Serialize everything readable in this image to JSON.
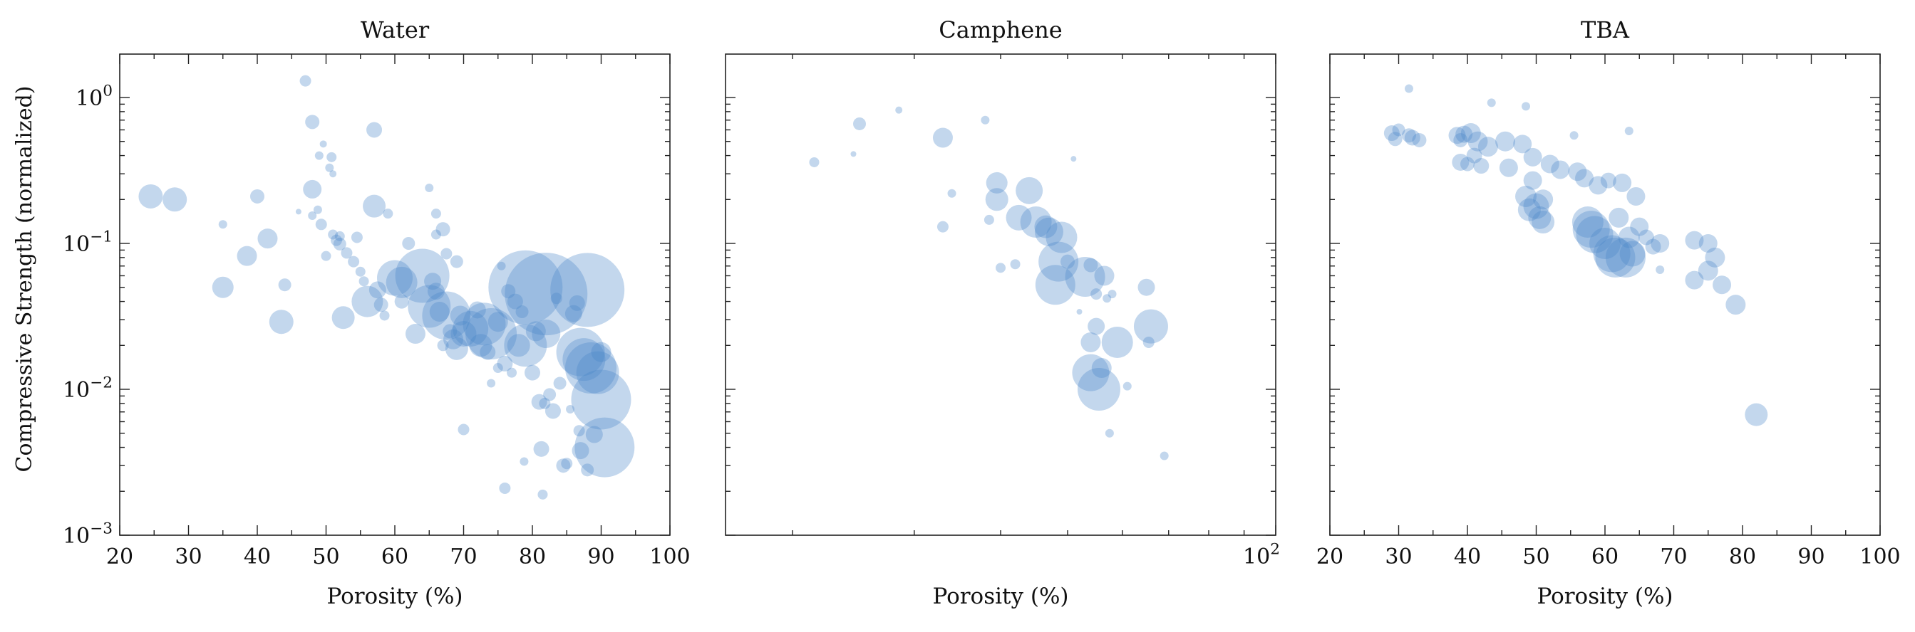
{
  "colors": {
    "bubble": "#4a86c8",
    "axis": "#222222",
    "background": "#ffffff"
  },
  "ylabel": "Compressive Strength (normalized)",
  "ytick_labels": [
    {
      "base": "10",
      "exp": "0",
      "value": 1
    },
    {
      "base": "10",
      "exp": "−1",
      "value": 0.1
    },
    {
      "base": "10",
      "exp": "−2",
      "value": 0.01
    },
    {
      "base": "10",
      "exp": "−3",
      "value": 0.001
    }
  ],
  "chart_data": [
    {
      "type": "scatter",
      "title": "Water",
      "xlabel": "Porosity (%)",
      "ylabel": "Compressive Strength (normalized)",
      "xscale": "linear",
      "yscale": "log",
      "xlim": [
        20,
        100
      ],
      "ylim": [
        0.001,
        2
      ],
      "xticks": [
        20,
        30,
        40,
        50,
        60,
        70,
        80,
        90,
        100
      ],
      "xtick_labels": [
        "20",
        "30",
        "40",
        "50",
        "60",
        "70",
        "80",
        "90",
        "100"
      ],
      "grid": false,
      "note": "bubble size s is relative marker size",
      "points": [
        {
          "x": 24.5,
          "y": 0.21,
          "s": 17
        },
        {
          "x": 28,
          "y": 0.2,
          "s": 17
        },
        {
          "x": 35,
          "y": 0.135,
          "s": 6
        },
        {
          "x": 35,
          "y": 0.05,
          "s": 15
        },
        {
          "x": 38.5,
          "y": 0.082,
          "s": 14
        },
        {
          "x": 40,
          "y": 0.21,
          "s": 10
        },
        {
          "x": 41.5,
          "y": 0.108,
          "s": 14
        },
        {
          "x": 43.5,
          "y": 0.029,
          "s": 17
        },
        {
          "x": 44,
          "y": 0.052,
          "s": 9
        },
        {
          "x": 46,
          "y": 0.165,
          "s": 4
        },
        {
          "x": 47,
          "y": 1.3,
          "s": 8
        },
        {
          "x": 48,
          "y": 0.68,
          "s": 10
        },
        {
          "x": 48,
          "y": 0.235,
          "s": 13
        },
        {
          "x": 48,
          "y": 0.155,
          "s": 6
        },
        {
          "x": 48.8,
          "y": 0.17,
          "s": 6
        },
        {
          "x": 49,
          "y": 0.4,
          "s": 6
        },
        {
          "x": 49.3,
          "y": 0.135,
          "s": 8
        },
        {
          "x": 49.6,
          "y": 0.48,
          "s": 5
        },
        {
          "x": 50,
          "y": 0.082,
          "s": 7
        },
        {
          "x": 50.5,
          "y": 0.33,
          "s": 6
        },
        {
          "x": 50.8,
          "y": 0.39,
          "s": 7
        },
        {
          "x": 51,
          "y": 0.3,
          "s": 5
        },
        {
          "x": 51,
          "y": 0.115,
          "s": 7
        },
        {
          "x": 51.5,
          "y": 0.105,
          "s": 8
        },
        {
          "x": 52,
          "y": 0.112,
          "s": 7
        },
        {
          "x": 52,
          "y": 0.099,
          "s": 9
        },
        {
          "x": 52.5,
          "y": 0.031,
          "s": 16
        },
        {
          "x": 53,
          "y": 0.086,
          "s": 8
        },
        {
          "x": 54,
          "y": 0.075,
          "s": 8
        },
        {
          "x": 54.5,
          "y": 0.11,
          "s": 8
        },
        {
          "x": 55,
          "y": 0.064,
          "s": 7
        },
        {
          "x": 55.5,
          "y": 0.055,
          "s": 7
        },
        {
          "x": 56,
          "y": 0.04,
          "s": 22
        },
        {
          "x": 57,
          "y": 0.6,
          "s": 11
        },
        {
          "x": 57,
          "y": 0.18,
          "s": 16
        },
        {
          "x": 57.5,
          "y": 0.048,
          "s": 12
        },
        {
          "x": 58,
          "y": 0.038,
          "s": 10
        },
        {
          "x": 58.5,
          "y": 0.032,
          "s": 7
        },
        {
          "x": 59,
          "y": 0.16,
          "s": 7
        },
        {
          "x": 60,
          "y": 0.058,
          "s": 25
        },
        {
          "x": 61,
          "y": 0.054,
          "s": 22
        },
        {
          "x": 61,
          "y": 0.04,
          "s": 10
        },
        {
          "x": 62,
          "y": 0.1,
          "s": 9
        },
        {
          "x": 63,
          "y": 0.024,
          "s": 14
        },
        {
          "x": 64,
          "y": 0.06,
          "s": 38
        },
        {
          "x": 65,
          "y": 0.24,
          "s": 6
        },
        {
          "x": 65,
          "y": 0.037,
          "s": 30
        },
        {
          "x": 65.5,
          "y": 0.055,
          "s": 12
        },
        {
          "x": 66,
          "y": 0.16,
          "s": 7
        },
        {
          "x": 66,
          "y": 0.115,
          "s": 7
        },
        {
          "x": 66,
          "y": 0.047,
          "s": 12
        },
        {
          "x": 66.5,
          "y": 0.034,
          "s": 14
        },
        {
          "x": 67,
          "y": 0.125,
          "s": 10
        },
        {
          "x": 67,
          "y": 0.02,
          "s": 8
        },
        {
          "x": 67.5,
          "y": 0.032,
          "s": 34
        },
        {
          "x": 67.5,
          "y": 0.085,
          "s": 8
        },
        {
          "x": 68,
          "y": 0.025,
          "s": 10
        },
        {
          "x": 68.5,
          "y": 0.022,
          "s": 14
        },
        {
          "x": 69,
          "y": 0.075,
          "s": 9
        },
        {
          "x": 69,
          "y": 0.019,
          "s": 16
        },
        {
          "x": 69.5,
          "y": 0.032,
          "s": 14
        },
        {
          "x": 70,
          "y": 0.024,
          "s": 18
        },
        {
          "x": 70,
          "y": 0.0053,
          "s": 8
        },
        {
          "x": 71,
          "y": 0.026,
          "s": 25
        },
        {
          "x": 72,
          "y": 0.035,
          "s": 12
        },
        {
          "x": 72.5,
          "y": 0.02,
          "s": 16
        },
        {
          "x": 73,
          "y": 0.028,
          "s": 30
        },
        {
          "x": 73.5,
          "y": 0.018,
          "s": 11
        },
        {
          "x": 74,
          "y": 0.011,
          "s": 6
        },
        {
          "x": 74,
          "y": 0.024,
          "s": 36
        },
        {
          "x": 75,
          "y": 0.029,
          "s": 14
        },
        {
          "x": 75,
          "y": 0.014,
          "s": 7
        },
        {
          "x": 75.5,
          "y": 0.07,
          "s": 6
        },
        {
          "x": 76,
          "y": 0.015,
          "s": 11
        },
        {
          "x": 76,
          "y": 0.0021,
          "s": 8
        },
        {
          "x": 76.5,
          "y": 0.047,
          "s": 10
        },
        {
          "x": 77,
          "y": 0.013,
          "s": 7
        },
        {
          "x": 77.5,
          "y": 0.04,
          "s": 11
        },
        {
          "x": 78,
          "y": 0.02,
          "s": 16
        },
        {
          "x": 78.5,
          "y": 0.034,
          "s": 9
        },
        {
          "x": 78.8,
          "y": 0.0032,
          "s": 6
        },
        {
          "x": 79,
          "y": 0.05,
          "s": 52
        },
        {
          "x": 79,
          "y": 0.02,
          "s": 30
        },
        {
          "x": 80,
          "y": 0.013,
          "s": 11
        },
        {
          "x": 80.5,
          "y": 0.025,
          "s": 14
        },
        {
          "x": 81,
          "y": 0.0082,
          "s": 11
        },
        {
          "x": 81.3,
          "y": 0.0039,
          "s": 11
        },
        {
          "x": 81.5,
          "y": 0.0019,
          "s": 7
        },
        {
          "x": 81.8,
          "y": 0.008,
          "s": 8
        },
        {
          "x": 82,
          "y": 0.045,
          "s": 58
        },
        {
          "x": 82,
          "y": 0.024,
          "s": 20
        },
        {
          "x": 82.5,
          "y": 0.0092,
          "s": 9
        },
        {
          "x": 83,
          "y": 0.0071,
          "s": 11
        },
        {
          "x": 83.5,
          "y": 0.042,
          "s": 8
        },
        {
          "x": 84,
          "y": 0.011,
          "s": 9
        },
        {
          "x": 84.5,
          "y": 0.003,
          "s": 10
        },
        {
          "x": 85,
          "y": 0.0031,
          "s": 8
        },
        {
          "x": 85.5,
          "y": 0.0073,
          "s": 6
        },
        {
          "x": 86,
          "y": 0.033,
          "s": 12
        },
        {
          "x": 86.5,
          "y": 0.039,
          "s": 11
        },
        {
          "x": 86.8,
          "y": 0.0052,
          "s": 8
        },
        {
          "x": 87,
          "y": 0.0038,
          "s": 12
        },
        {
          "x": 87,
          "y": 0.018,
          "s": 34
        },
        {
          "x": 87.5,
          "y": 0.016,
          "s": 30
        },
        {
          "x": 88,
          "y": 0.048,
          "s": 52
        },
        {
          "x": 88,
          "y": 0.0028,
          "s": 9
        },
        {
          "x": 88.5,
          "y": 0.014,
          "s": 36
        },
        {
          "x": 89,
          "y": 0.0049,
          "s": 12
        },
        {
          "x": 89.5,
          "y": 0.013,
          "s": 30
        },
        {
          "x": 90,
          "y": 0.018,
          "s": 14
        },
        {
          "x": 90,
          "y": 0.0085,
          "s": 42
        },
        {
          "x": 90.5,
          "y": 0.004,
          "s": 42
        }
      ]
    },
    {
      "type": "scatter",
      "title": "Camphene",
      "xlabel": "Porosity (%)",
      "ylabel": "",
      "xscale": "log",
      "yscale": "log",
      "xlim": [
        16,
        100
      ],
      "ylim": [
        0.001,
        2
      ],
      "xtick_labels": [
        {
          "base": "10",
          "exp": "2",
          "value": 100
        }
      ],
      "grid": false,
      "note": "bubble size s is relative marker size",
      "points": [
        {
          "x": 21.5,
          "y": 0.36,
          "s": 7
        },
        {
          "x": 24.5,
          "y": 0.41,
          "s": 4
        },
        {
          "x": 25,
          "y": 0.66,
          "s": 9
        },
        {
          "x": 28.5,
          "y": 0.82,
          "s": 5
        },
        {
          "x": 33,
          "y": 0.53,
          "s": 14
        },
        {
          "x": 33,
          "y": 0.13,
          "s": 8
        },
        {
          "x": 34,
          "y": 0.22,
          "s": 6
        },
        {
          "x": 38,
          "y": 0.7,
          "s": 6
        },
        {
          "x": 38.5,
          "y": 0.145,
          "s": 7
        },
        {
          "x": 39.5,
          "y": 0.26,
          "s": 15
        },
        {
          "x": 39.5,
          "y": 0.2,
          "s": 16
        },
        {
          "x": 40,
          "y": 0.068,
          "s": 7
        },
        {
          "x": 42,
          "y": 0.072,
          "s": 7
        },
        {
          "x": 42.5,
          "y": 0.15,
          "s": 18
        },
        {
          "x": 44,
          "y": 0.23,
          "s": 19
        },
        {
          "x": 45,
          "y": 0.14,
          "s": 22
        },
        {
          "x": 46.5,
          "y": 0.13,
          "s": 16
        },
        {
          "x": 47,
          "y": 0.12,
          "s": 20
        },
        {
          "x": 48,
          "y": 0.052,
          "s": 28
        },
        {
          "x": 48.5,
          "y": 0.075,
          "s": 28
        },
        {
          "x": 49,
          "y": 0.11,
          "s": 22
        },
        {
          "x": 50,
          "y": 0.075,
          "s": 10
        },
        {
          "x": 51,
          "y": 0.38,
          "s": 4
        },
        {
          "x": 52,
          "y": 0.034,
          "s": 4
        },
        {
          "x": 53,
          "y": 0.059,
          "s": 28
        },
        {
          "x": 54,
          "y": 0.071,
          "s": 10
        },
        {
          "x": 54,
          "y": 0.021,
          "s": 14
        },
        {
          "x": 54,
          "y": 0.013,
          "s": 26
        },
        {
          "x": 55,
          "y": 0.045,
          "s": 8
        },
        {
          "x": 55,
          "y": 0.027,
          "s": 12
        },
        {
          "x": 55.5,
          "y": 0.01,
          "s": 30
        },
        {
          "x": 56,
          "y": 0.014,
          "s": 14
        },
        {
          "x": 56.5,
          "y": 0.06,
          "s": 14
        },
        {
          "x": 57,
          "y": 0.042,
          "s": 6
        },
        {
          "x": 57.5,
          "y": 0.005,
          "s": 6
        },
        {
          "x": 58,
          "y": 0.045,
          "s": 6
        },
        {
          "x": 59,
          "y": 0.021,
          "s": 22
        },
        {
          "x": 61,
          "y": 0.0105,
          "s": 6
        },
        {
          "x": 65,
          "y": 0.05,
          "s": 12
        },
        {
          "x": 65.5,
          "y": 0.021,
          "s": 8
        },
        {
          "x": 66,
          "y": 0.027,
          "s": 24
        },
        {
          "x": 69,
          "y": 0.0035,
          "s": 6
        }
      ]
    },
    {
      "type": "scatter",
      "title": "TBA",
      "xlabel": "Porosity (%)",
      "ylabel": "",
      "xscale": "linear",
      "yscale": "log",
      "xlim": [
        20,
        100
      ],
      "ylim": [
        0.001,
        2
      ],
      "xticks": [
        20,
        30,
        40,
        50,
        60,
        70,
        80,
        90,
        100
      ],
      "xtick_labels": [
        "20",
        "30",
        "40",
        "50",
        "60",
        "70",
        "80",
        "90",
        "100"
      ],
      "grid": false,
      "note": "bubble size s is relative marker size",
      "points": [
        {
          "x": 29,
          "y": 0.57,
          "s": 11
        },
        {
          "x": 29.5,
          "y": 0.52,
          "s": 10
        },
        {
          "x": 30,
          "y": 0.6,
          "s": 9
        },
        {
          "x": 31.5,
          "y": 0.55,
          "s": 10
        },
        {
          "x": 31.5,
          "y": 1.15,
          "s": 6
        },
        {
          "x": 32,
          "y": 0.53,
          "s": 11
        },
        {
          "x": 33,
          "y": 0.51,
          "s": 10
        },
        {
          "x": 38.5,
          "y": 0.55,
          "s": 12
        },
        {
          "x": 39,
          "y": 0.51,
          "s": 10
        },
        {
          "x": 39,
          "y": 0.36,
          "s": 12
        },
        {
          "x": 39.5,
          "y": 0.56,
          "s": 12
        },
        {
          "x": 40,
          "y": 0.35,
          "s": 10
        },
        {
          "x": 40.5,
          "y": 0.57,
          "s": 14
        },
        {
          "x": 41,
          "y": 0.4,
          "s": 11
        },
        {
          "x": 41.5,
          "y": 0.5,
          "s": 14
        },
        {
          "x": 42,
          "y": 0.34,
          "s": 11
        },
        {
          "x": 43,
          "y": 0.46,
          "s": 14
        },
        {
          "x": 43.5,
          "y": 0.92,
          "s": 6
        },
        {
          "x": 45.5,
          "y": 0.5,
          "s": 14
        },
        {
          "x": 46,
          "y": 0.33,
          "s": 13
        },
        {
          "x": 48,
          "y": 0.48,
          "s": 13
        },
        {
          "x": 48.5,
          "y": 0.87,
          "s": 6
        },
        {
          "x": 48.5,
          "y": 0.21,
          "s": 15
        },
        {
          "x": 49,
          "y": 0.17,
          "s": 16
        },
        {
          "x": 49.5,
          "y": 0.39,
          "s": 13
        },
        {
          "x": 49.5,
          "y": 0.27,
          "s": 13
        },
        {
          "x": 50,
          "y": 0.18,
          "s": 18
        },
        {
          "x": 50.5,
          "y": 0.15,
          "s": 16
        },
        {
          "x": 51,
          "y": 0.14,
          "s": 16
        },
        {
          "x": 51,
          "y": 0.2,
          "s": 14
        },
        {
          "x": 52,
          "y": 0.35,
          "s": 13
        },
        {
          "x": 53.5,
          "y": 0.32,
          "s": 13
        },
        {
          "x": 55.5,
          "y": 0.55,
          "s": 6
        },
        {
          "x": 56,
          "y": 0.31,
          "s": 13
        },
        {
          "x": 57,
          "y": 0.28,
          "s": 13
        },
        {
          "x": 57.5,
          "y": 0.14,
          "s": 22
        },
        {
          "x": 58,
          "y": 0.125,
          "s": 26
        },
        {
          "x": 58.5,
          "y": 0.115,
          "s": 26
        },
        {
          "x": 59,
          "y": 0.25,
          "s": 13
        },
        {
          "x": 60,
          "y": 0.1,
          "s": 22
        },
        {
          "x": 60.5,
          "y": 0.27,
          "s": 11
        },
        {
          "x": 61,
          "y": 0.085,
          "s": 26
        },
        {
          "x": 61.5,
          "y": 0.08,
          "s": 28
        },
        {
          "x": 62,
          "y": 0.15,
          "s": 14
        },
        {
          "x": 62.5,
          "y": 0.26,
          "s": 13
        },
        {
          "x": 63,
          "y": 0.08,
          "s": 28
        },
        {
          "x": 63.5,
          "y": 0.11,
          "s": 15
        },
        {
          "x": 63.5,
          "y": 0.59,
          "s": 6
        },
        {
          "x": 64,
          "y": 0.085,
          "s": 18
        },
        {
          "x": 64.5,
          "y": 0.21,
          "s": 13
        },
        {
          "x": 65,
          "y": 0.13,
          "s": 13
        },
        {
          "x": 66,
          "y": 0.11,
          "s": 11
        },
        {
          "x": 67,
          "y": 0.095,
          "s": 11
        },
        {
          "x": 68,
          "y": 0.1,
          "s": 13
        },
        {
          "x": 68,
          "y": 0.066,
          "s": 6
        },
        {
          "x": 73,
          "y": 0.105,
          "s": 13
        },
        {
          "x": 73,
          "y": 0.056,
          "s": 13
        },
        {
          "x": 75,
          "y": 0.1,
          "s": 13
        },
        {
          "x": 75,
          "y": 0.065,
          "s": 14
        },
        {
          "x": 76,
          "y": 0.08,
          "s": 14
        },
        {
          "x": 77,
          "y": 0.052,
          "s": 13
        },
        {
          "x": 79,
          "y": 0.038,
          "s": 14
        },
        {
          "x": 82,
          "y": 0.0067,
          "s": 16
        }
      ]
    }
  ]
}
